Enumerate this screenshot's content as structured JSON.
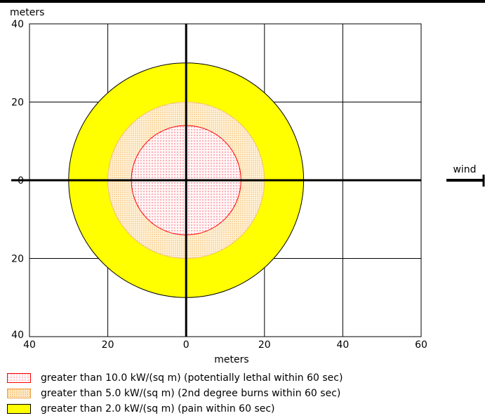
{
  "chart_data": {
    "type": "area",
    "title": "",
    "xlabel": "meters",
    "ylabel": "meters",
    "xlim": [
      -40,
      60
    ],
    "ylim": [
      -40,
      40
    ],
    "x_ticks": [
      -40,
      -20,
      0,
      20,
      40,
      60
    ],
    "x_tick_labels": [
      "40",
      "20",
      "0",
      "20",
      "40",
      "60"
    ],
    "y_ticks": [
      40,
      20,
      0,
      -20,
      -40
    ],
    "y_tick_labels": [
      "40",
      "20",
      "0",
      "20",
      "40"
    ],
    "grid": true,
    "wind_label": "wind",
    "zones": [
      {
        "threshold_kw_sq_m": 2.0,
        "radius_m": 30,
        "center": [
          0,
          0
        ],
        "color": "#ffff00",
        "label": "greater than 2.0 kW/(sq m) (pain within 60 sec)"
      },
      {
        "threshold_kw_sq_m": 5.0,
        "radius_m": 20,
        "center": [
          0,
          0
        ],
        "color": "#fbe3b5",
        "label": "greater than 5.0 kW/(sq m) (2nd degree burns within 60 sec)"
      },
      {
        "threshold_kw_sq_m": 10.0,
        "radius_m": 14,
        "center": [
          0,
          0
        ],
        "color": "#fde8ea",
        "label": "greater than 10.0 kW/(sq m) (potentially lethal within 60 sec)"
      }
    ],
    "legend": [
      {
        "label": "greater than 10.0 kW/(sq m) (potentially lethal within 60 sec)",
        "color": "#fde8ea",
        "border": "#ff0000"
      },
      {
        "label": "greater than 5.0 kW/(sq m) (2nd degree burns within 60 sec)",
        "color": "#fbe3b5",
        "border": "#f0a040"
      },
      {
        "label": "greater than 2.0 kW/(sq m) (pain within 60 sec)",
        "color": "#ffff00",
        "border": "#000000"
      }
    ]
  }
}
